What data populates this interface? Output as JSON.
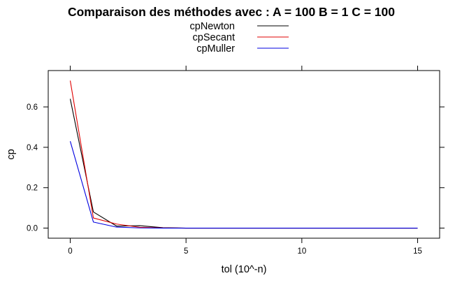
{
  "chart_data": {
    "type": "line",
    "title": "Comparaison des méthodes avec : A =  100 B =  1 C =  100",
    "xlabel": "tol (10^-n)",
    "ylabel": "cp",
    "x": [
      0,
      1,
      2,
      3,
      4,
      5,
      6,
      7,
      8,
      9,
      10,
      11,
      12,
      13,
      14,
      15
    ],
    "xlim": [
      -0.95,
      15.95
    ],
    "ylim": [
      -0.05,
      0.78
    ],
    "x_ticks": [
      0,
      5,
      10,
      15
    ],
    "x_tick_labels": [
      "0",
      "5",
      "10",
      "15"
    ],
    "y_ticks": [
      0.0,
      0.2,
      0.4,
      0.6
    ],
    "y_tick_labels": [
      "0.0",
      "0.2",
      "0.4",
      "0.6"
    ],
    "grid": false,
    "legend_position": "top-center",
    "series": [
      {
        "name": "cpNewton",
        "color": "#000000",
        "values": [
          0.64,
          0.08,
          0.01,
          0.012,
          0.002,
          0,
          0,
          0,
          0,
          0,
          0,
          0,
          0,
          0,
          0,
          0
        ]
      },
      {
        "name": "cpSecant",
        "color": "#e00000",
        "values": [
          0.73,
          0.05,
          0.02,
          0.004,
          0.001,
          0,
          0,
          0,
          0,
          0,
          0,
          0,
          0,
          0,
          0,
          0
        ]
      },
      {
        "name": "cpMuller",
        "color": "#0000e0",
        "values": [
          0.43,
          0.03,
          0.005,
          0.001,
          0,
          0,
          0,
          0,
          0,
          0,
          0,
          0,
          0,
          0,
          0,
          0
        ]
      }
    ]
  }
}
